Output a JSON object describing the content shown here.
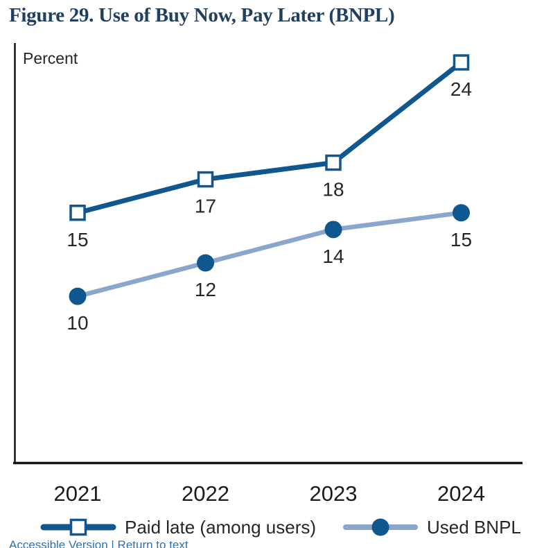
{
  "title": "Figure 29. Use of Buy Now, Pay Later (BNPL)",
  "colors": {
    "dark_blue": "#10578f",
    "light_blue": "#8ba6cd",
    "title_navy": "#21405e",
    "link_blue": "#2e6fae",
    "axis": "#141414",
    "label_text": "#262626",
    "tick_text": "#1a1a1a"
  },
  "chart_data": {
    "type": "line",
    "title": "Figure 29. Use of Buy Now, Pay Later (BNPL)",
    "categories": [
      "2021",
      "2022",
      "2023",
      "2024"
    ],
    "series": [
      {
        "name": "Paid late (among users)",
        "values": [
          15,
          17,
          18,
          24
        ],
        "marker": "square",
        "line_color": "#10578f",
        "marker_fill": "#ffffff",
        "marker_stroke": "#10578f"
      },
      {
        "name": "Used BNPL",
        "values": [
          10,
          12,
          14,
          15
        ],
        "marker": "circle",
        "line_color": "#8ba6cd",
        "marker_fill": "#10578f",
        "marker_stroke": "#10578f"
      }
    ],
    "ylabel": "Percent",
    "xlabel": "",
    "ylim": [
      0,
      25
    ],
    "grid": false,
    "legend_position": "bottom",
    "data_labels": true
  },
  "footer": {
    "accessible_link": "Accessible Version | Return to text"
  }
}
